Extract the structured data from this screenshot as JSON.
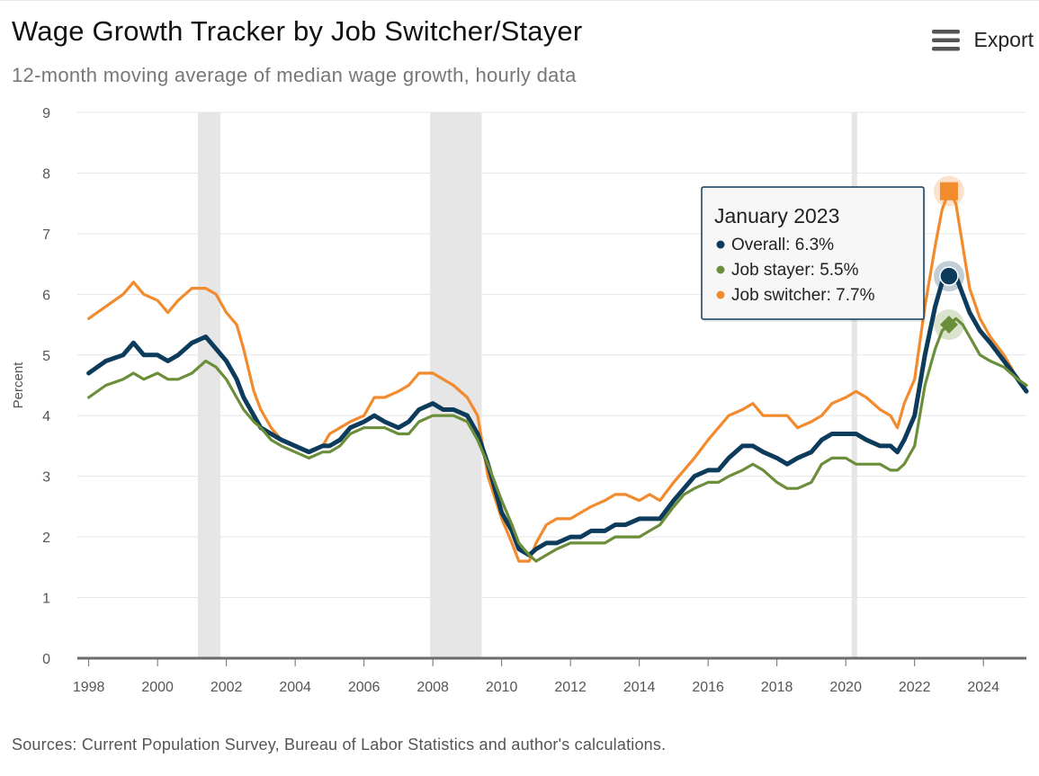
{
  "header": {
    "title": "Wage Growth Tracker by Job Switcher/Stayer",
    "subtitle": "12-month moving average of median wage growth, hourly data",
    "export_label": "Export",
    "export_icon": "hamburger-menu-icon"
  },
  "footer": {
    "source": "Sources: Current Population Survey, Bureau of Labor Statistics and author's calculations."
  },
  "tooltip": {
    "date": "January 2023",
    "items": [
      {
        "label": "Overall: 6.3%",
        "color": "#0d3b5c"
      },
      {
        "label": "Job stayer: 5.5%",
        "color": "#6b8e3a"
      },
      {
        "label": "Job switcher: 7.7%",
        "color": "#f28a2e"
      }
    ]
  },
  "chart_data": {
    "type": "line",
    "ylabel": "Percent",
    "xlabel": "",
    "ylim": [
      0,
      9
    ],
    "xlim": [
      1997.67,
      2025.25
    ],
    "yticks": [
      0,
      1,
      2,
      3,
      4,
      5,
      6,
      7,
      8,
      9
    ],
    "xticks": [
      "1998",
      "2000",
      "2002",
      "2004",
      "2006",
      "2008",
      "2010",
      "2012",
      "2014",
      "2016",
      "2018",
      "2020",
      "2022",
      "2024"
    ],
    "recessions": [
      [
        2001.17,
        2001.83
      ],
      [
        2007.92,
        2009.42
      ],
      [
        2020.17,
        2020.33
      ]
    ],
    "highlight": {
      "date": 2023.0,
      "label": "January 2023"
    },
    "series": [
      {
        "name": "Job switcher",
        "color": "#f28a2e",
        "marker": "square",
        "points": [
          [
            1998.0,
            5.6
          ],
          [
            1998.5,
            5.8
          ],
          [
            1999.0,
            6.0
          ],
          [
            1999.3,
            6.2
          ],
          [
            1999.6,
            6.0
          ],
          [
            2000.0,
            5.9
          ],
          [
            2000.3,
            5.7
          ],
          [
            2000.6,
            5.9
          ],
          [
            2001.0,
            6.1
          ],
          [
            2001.4,
            6.1
          ],
          [
            2001.7,
            6.0
          ],
          [
            2002.0,
            5.7
          ],
          [
            2002.3,
            5.5
          ],
          [
            2002.5,
            5.1
          ],
          [
            2002.8,
            4.4
          ],
          [
            2003.0,
            4.1
          ],
          [
            2003.3,
            3.8
          ],
          [
            2003.6,
            3.6
          ],
          [
            2004.0,
            3.5
          ],
          [
            2004.4,
            3.4
          ],
          [
            2004.8,
            3.5
          ],
          [
            2005.0,
            3.7
          ],
          [
            2005.3,
            3.8
          ],
          [
            2005.6,
            3.9
          ],
          [
            2006.0,
            4.0
          ],
          [
            2006.3,
            4.3
          ],
          [
            2006.6,
            4.3
          ],
          [
            2007.0,
            4.4
          ],
          [
            2007.3,
            4.5
          ],
          [
            2007.6,
            4.7
          ],
          [
            2008.0,
            4.7
          ],
          [
            2008.3,
            4.6
          ],
          [
            2008.6,
            4.5
          ],
          [
            2009.0,
            4.3
          ],
          [
            2009.3,
            4.0
          ],
          [
            2009.6,
            3.0
          ],
          [
            2010.0,
            2.3
          ],
          [
            2010.3,
            1.9
          ],
          [
            2010.5,
            1.6
          ],
          [
            2010.8,
            1.6
          ],
          [
            2011.0,
            1.9
          ],
          [
            2011.3,
            2.2
          ],
          [
            2011.6,
            2.3
          ],
          [
            2012.0,
            2.3
          ],
          [
            2012.3,
            2.4
          ],
          [
            2012.6,
            2.5
          ],
          [
            2013.0,
            2.6
          ],
          [
            2013.3,
            2.7
          ],
          [
            2013.6,
            2.7
          ],
          [
            2014.0,
            2.6
          ],
          [
            2014.3,
            2.7
          ],
          [
            2014.6,
            2.6
          ],
          [
            2015.0,
            2.9
          ],
          [
            2015.3,
            3.1
          ],
          [
            2015.6,
            3.3
          ],
          [
            2016.0,
            3.6
          ],
          [
            2016.3,
            3.8
          ],
          [
            2016.6,
            4.0
          ],
          [
            2017.0,
            4.1
          ],
          [
            2017.3,
            4.2
          ],
          [
            2017.6,
            4.0
          ],
          [
            2018.0,
            4.0
          ],
          [
            2018.3,
            4.0
          ],
          [
            2018.6,
            3.8
          ],
          [
            2019.0,
            3.9
          ],
          [
            2019.3,
            4.0
          ],
          [
            2019.6,
            4.2
          ],
          [
            2020.0,
            4.3
          ],
          [
            2020.3,
            4.4
          ],
          [
            2020.6,
            4.3
          ],
          [
            2021.0,
            4.1
          ],
          [
            2021.3,
            4.0
          ],
          [
            2021.5,
            3.8
          ],
          [
            2021.7,
            4.2
          ],
          [
            2022.0,
            4.6
          ],
          [
            2022.3,
            5.8
          ],
          [
            2022.6,
            6.8
          ],
          [
            2022.8,
            7.4
          ],
          [
            2023.0,
            7.7
          ],
          [
            2023.2,
            7.5
          ],
          [
            2023.4,
            6.8
          ],
          [
            2023.6,
            6.1
          ],
          [
            2023.9,
            5.6
          ],
          [
            2024.2,
            5.3
          ],
          [
            2024.6,
            5.0
          ],
          [
            2025.0,
            4.6
          ],
          [
            2025.25,
            4.5
          ]
        ]
      },
      {
        "name": "Overall",
        "color": "#0d3b5c",
        "marker": "circle",
        "points": [
          [
            1998.0,
            4.7
          ],
          [
            1998.5,
            4.9
          ],
          [
            1999.0,
            5.0
          ],
          [
            1999.3,
            5.2
          ],
          [
            1999.6,
            5.0
          ],
          [
            2000.0,
            5.0
          ],
          [
            2000.3,
            4.9
          ],
          [
            2000.6,
            5.0
          ],
          [
            2001.0,
            5.2
          ],
          [
            2001.4,
            5.3
          ],
          [
            2001.7,
            5.1
          ],
          [
            2002.0,
            4.9
          ],
          [
            2002.3,
            4.6
          ],
          [
            2002.5,
            4.3
          ],
          [
            2002.8,
            4.0
          ],
          [
            2003.0,
            3.8
          ],
          [
            2003.3,
            3.7
          ],
          [
            2003.6,
            3.6
          ],
          [
            2004.0,
            3.5
          ],
          [
            2004.4,
            3.4
          ],
          [
            2004.8,
            3.5
          ],
          [
            2005.0,
            3.5
          ],
          [
            2005.3,
            3.6
          ],
          [
            2005.6,
            3.8
          ],
          [
            2006.0,
            3.9
          ],
          [
            2006.3,
            4.0
          ],
          [
            2006.6,
            3.9
          ],
          [
            2007.0,
            3.8
          ],
          [
            2007.3,
            3.9
          ],
          [
            2007.6,
            4.1
          ],
          [
            2008.0,
            4.2
          ],
          [
            2008.3,
            4.1
          ],
          [
            2008.6,
            4.1
          ],
          [
            2009.0,
            4.0
          ],
          [
            2009.3,
            3.7
          ],
          [
            2009.6,
            3.2
          ],
          [
            2010.0,
            2.4
          ],
          [
            2010.3,
            2.1
          ],
          [
            2010.5,
            1.8
          ],
          [
            2010.8,
            1.7
          ],
          [
            2011.0,
            1.8
          ],
          [
            2011.3,
            1.9
          ],
          [
            2011.6,
            1.9
          ],
          [
            2012.0,
            2.0
          ],
          [
            2012.3,
            2.0
          ],
          [
            2012.6,
            2.1
          ],
          [
            2013.0,
            2.1
          ],
          [
            2013.3,
            2.2
          ],
          [
            2013.6,
            2.2
          ],
          [
            2014.0,
            2.3
          ],
          [
            2014.3,
            2.3
          ],
          [
            2014.6,
            2.3
          ],
          [
            2015.0,
            2.6
          ],
          [
            2015.3,
            2.8
          ],
          [
            2015.6,
            3.0
          ],
          [
            2016.0,
            3.1
          ],
          [
            2016.3,
            3.1
          ],
          [
            2016.6,
            3.3
          ],
          [
            2017.0,
            3.5
          ],
          [
            2017.3,
            3.5
          ],
          [
            2017.6,
            3.4
          ],
          [
            2018.0,
            3.3
          ],
          [
            2018.3,
            3.2
          ],
          [
            2018.6,
            3.3
          ],
          [
            2019.0,
            3.4
          ],
          [
            2019.3,
            3.6
          ],
          [
            2019.6,
            3.7
          ],
          [
            2020.0,
            3.7
          ],
          [
            2020.3,
            3.7
          ],
          [
            2020.6,
            3.6
          ],
          [
            2021.0,
            3.5
          ],
          [
            2021.3,
            3.5
          ],
          [
            2021.5,
            3.4
          ],
          [
            2021.7,
            3.6
          ],
          [
            2022.0,
            4.0
          ],
          [
            2022.3,
            5.0
          ],
          [
            2022.6,
            5.8
          ],
          [
            2022.8,
            6.2
          ],
          [
            2023.0,
            6.3
          ],
          [
            2023.2,
            6.3
          ],
          [
            2023.4,
            6.0
          ],
          [
            2023.6,
            5.7
          ],
          [
            2023.9,
            5.4
          ],
          [
            2024.2,
            5.2
          ],
          [
            2024.6,
            4.9
          ],
          [
            2025.0,
            4.6
          ],
          [
            2025.25,
            4.4
          ]
        ]
      },
      {
        "name": "Job stayer",
        "color": "#6b8e3a",
        "marker": "diamond",
        "points": [
          [
            1998.0,
            4.3
          ],
          [
            1998.5,
            4.5
          ],
          [
            1999.0,
            4.6
          ],
          [
            1999.3,
            4.7
          ],
          [
            1999.6,
            4.6
          ],
          [
            2000.0,
            4.7
          ],
          [
            2000.3,
            4.6
          ],
          [
            2000.6,
            4.6
          ],
          [
            2001.0,
            4.7
          ],
          [
            2001.4,
            4.9
          ],
          [
            2001.7,
            4.8
          ],
          [
            2002.0,
            4.6
          ],
          [
            2002.3,
            4.3
          ],
          [
            2002.5,
            4.1
          ],
          [
            2002.8,
            3.9
          ],
          [
            2003.0,
            3.8
          ],
          [
            2003.3,
            3.6
          ],
          [
            2003.6,
            3.5
          ],
          [
            2004.0,
            3.4
          ],
          [
            2004.4,
            3.3
          ],
          [
            2004.8,
            3.4
          ],
          [
            2005.0,
            3.4
          ],
          [
            2005.3,
            3.5
          ],
          [
            2005.6,
            3.7
          ],
          [
            2006.0,
            3.8
          ],
          [
            2006.3,
            3.8
          ],
          [
            2006.6,
            3.8
          ],
          [
            2007.0,
            3.7
          ],
          [
            2007.3,
            3.7
          ],
          [
            2007.6,
            3.9
          ],
          [
            2008.0,
            4.0
          ],
          [
            2008.3,
            4.0
          ],
          [
            2008.6,
            4.0
          ],
          [
            2009.0,
            3.9
          ],
          [
            2009.3,
            3.6
          ],
          [
            2009.6,
            3.2
          ],
          [
            2010.0,
            2.6
          ],
          [
            2010.3,
            2.2
          ],
          [
            2010.5,
            1.9
          ],
          [
            2010.8,
            1.7
          ],
          [
            2011.0,
            1.6
          ],
          [
            2011.3,
            1.7
          ],
          [
            2011.6,
            1.8
          ],
          [
            2012.0,
            1.9
          ],
          [
            2012.3,
            1.9
          ],
          [
            2012.6,
            1.9
          ],
          [
            2013.0,
            1.9
          ],
          [
            2013.3,
            2.0
          ],
          [
            2013.6,
            2.0
          ],
          [
            2014.0,
            2.0
          ],
          [
            2014.3,
            2.1
          ],
          [
            2014.6,
            2.2
          ],
          [
            2015.0,
            2.5
          ],
          [
            2015.3,
            2.7
          ],
          [
            2015.6,
            2.8
          ],
          [
            2016.0,
            2.9
          ],
          [
            2016.3,
            2.9
          ],
          [
            2016.6,
            3.0
          ],
          [
            2017.0,
            3.1
          ],
          [
            2017.3,
            3.2
          ],
          [
            2017.6,
            3.1
          ],
          [
            2018.0,
            2.9
          ],
          [
            2018.3,
            2.8
          ],
          [
            2018.6,
            2.8
          ],
          [
            2019.0,
            2.9
          ],
          [
            2019.3,
            3.2
          ],
          [
            2019.6,
            3.3
          ],
          [
            2020.0,
            3.3
          ],
          [
            2020.3,
            3.2
          ],
          [
            2020.6,
            3.2
          ],
          [
            2021.0,
            3.2
          ],
          [
            2021.3,
            3.1
          ],
          [
            2021.5,
            3.1
          ],
          [
            2021.7,
            3.2
          ],
          [
            2022.0,
            3.5
          ],
          [
            2022.3,
            4.5
          ],
          [
            2022.6,
            5.1
          ],
          [
            2022.8,
            5.4
          ],
          [
            2023.0,
            5.5
          ],
          [
            2023.2,
            5.6
          ],
          [
            2023.4,
            5.5
          ],
          [
            2023.6,
            5.3
          ],
          [
            2023.9,
            5.0
          ],
          [
            2024.2,
            4.9
          ],
          [
            2024.6,
            4.8
          ],
          [
            2025.0,
            4.6
          ],
          [
            2025.25,
            4.5
          ]
        ]
      }
    ]
  }
}
